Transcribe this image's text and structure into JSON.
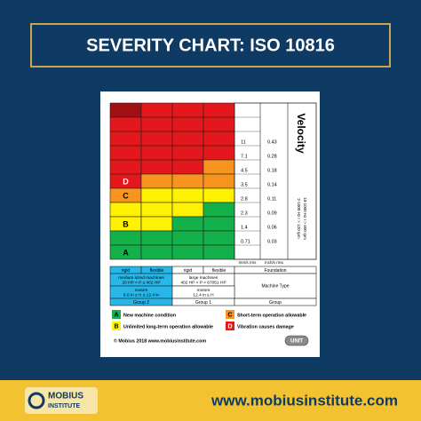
{
  "header": {
    "title": "SEVERITY CHART: ISO 10816"
  },
  "chart": {
    "heading": "Velocity",
    "frequency_notes": [
      "10-1000 Hz r > 600 rpm",
      "2-1000 Hz r > 120 rpm"
    ],
    "zone_colors": {
      "DR": "#a00f12",
      "R": "#e3171c",
      "O": "#f7941d",
      "Y": "#fff200",
      "G": "#14b04a"
    },
    "rows": [
      {
        "cells": [
          "DR",
          "R",
          "R",
          "R"
        ]
      },
      {
        "cells": [
          "R",
          "R",
          "R",
          "R"
        ]
      },
      {
        "cells": [
          "R",
          "R",
          "R",
          "R"
        ]
      },
      {
        "cells": [
          "R",
          "R",
          "R",
          "R"
        ]
      },
      {
        "cells": [
          "R",
          "R",
          "R",
          "O"
        ]
      },
      {
        "cells": [
          "R",
          "O",
          "O",
          "O"
        ],
        "zone": "D"
      },
      {
        "cells": [
          "O",
          "Y",
          "Y",
          "Y"
        ],
        "zone": "C"
      },
      {
        "cells": [
          "Y",
          "Y",
          "Y",
          "G"
        ]
      },
      {
        "cells": [
          "Y",
          "Y",
          "G",
          "G"
        ],
        "zone": "B"
      },
      {
        "cells": [
          "G",
          "G",
          "G",
          "G"
        ]
      },
      {
        "cells": [
          "G",
          "G",
          "G",
          "G"
        ],
        "zone": "A"
      }
    ],
    "mm_s": [
      "11",
      "7.1",
      "4.5",
      "3.5",
      "2.8",
      "2.3",
      "1.4",
      "0.71"
    ],
    "in_s": [
      "0.43",
      "0.28",
      "0.18",
      "0.14",
      "0.11",
      "0.09",
      "0.06",
      "0.03"
    ],
    "units": [
      "mm/s rms",
      "inch/s rms"
    ],
    "foundation": {
      "columns": [
        "rigid",
        "flexible",
        "rigid",
        "flexible"
      ],
      "label": "Foundation"
    },
    "machine_type": {
      "group2": [
        "medium sized machines",
        "20 HP < P ≤ 402 HP"
      ],
      "group1": [
        "large machines",
        "402 HP < P < 67051 HP"
      ],
      "label": "Machine Type"
    },
    "motors": {
      "group2": [
        "motors",
        "6.0 in ≤ H ≤ 12.4 in"
      ],
      "group1": [
        "motors",
        "12.4 in ≤ H"
      ]
    },
    "groups": {
      "group2": "Group 2",
      "group1": "Group 1",
      "label": "Group"
    }
  },
  "legend": [
    {
      "letter": "A",
      "text": "New machine condition",
      "color": "G"
    },
    {
      "letter": "B",
      "text": "Unlimited long-term operation allowable",
      "color": "Y"
    },
    {
      "letter": "C",
      "text": "Short-term operation allowable",
      "color": "O"
    },
    {
      "letter": "D",
      "text": "Vibration causes damage",
      "color": "R"
    }
  ],
  "copyright": "© Mobius 2018 www.mobiusinstitute.com",
  "unit_button": "UNIT",
  "footer": {
    "logo": [
      "MOBIUS",
      "INSTITUTE"
    ],
    "url": "www.mobiusinstitute.com"
  }
}
